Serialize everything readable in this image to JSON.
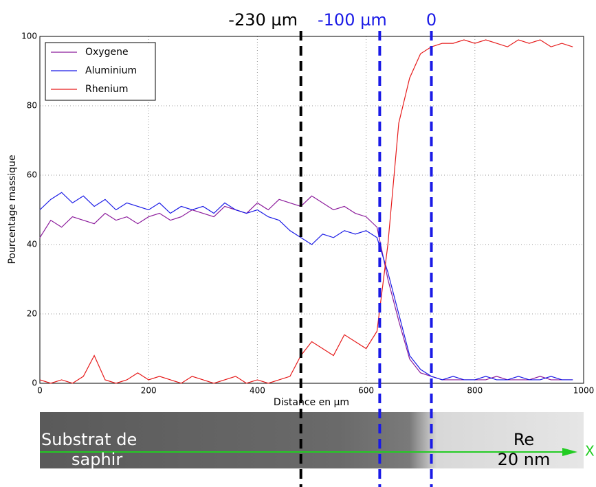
{
  "chart_data": {
    "type": "line",
    "x_label": "Distance en µm",
    "y_label": "Pourcentage massique",
    "x": [
      0,
      20,
      40,
      60,
      80,
      100,
      120,
      140,
      160,
      180,
      200,
      220,
      240,
      260,
      280,
      300,
      320,
      340,
      360,
      380,
      400,
      420,
      440,
      460,
      480,
      500,
      520,
      540,
      560,
      580,
      600,
      620,
      640,
      660,
      680,
      700,
      720,
      740,
      760,
      780,
      800,
      820,
      840,
      860,
      880,
      900,
      920,
      940,
      960,
      980
    ],
    "series": [
      {
        "name": "Oxygene",
        "color": "#8b1a9b",
        "values": [
          42,
          47,
          45,
          48,
          47,
          46,
          49,
          47,
          48,
          46,
          48,
          49,
          47,
          48,
          50,
          49,
          48,
          51,
          50,
          49,
          52,
          50,
          53,
          52,
          51,
          54,
          52,
          50,
          51,
          49,
          48,
          45,
          30,
          18,
          7,
          3,
          2,
          1,
          1,
          1,
          1,
          1,
          2,
          1,
          1,
          1,
          2,
          1,
          1,
          1
        ]
      },
      {
        "name": "Aluminium",
        "color": "#1a1ae6",
        "values": [
          50,
          53,
          55,
          52,
          54,
          51,
          53,
          50,
          52,
          51,
          50,
          52,
          49,
          51,
          50,
          51,
          49,
          52,
          50,
          49,
          50,
          48,
          47,
          44,
          42,
          40,
          43,
          42,
          44,
          43,
          44,
          42,
          32,
          20,
          8,
          4,
          2,
          1,
          2,
          1,
          1,
          2,
          1,
          1,
          2,
          1,
          1,
          2,
          1,
          1
        ]
      },
      {
        "name": "Rhenium",
        "color": "#e61a1a",
        "values": [
          1,
          0,
          1,
          0,
          2,
          8,
          1,
          0,
          1,
          3,
          1,
          2,
          1,
          0,
          2,
          1,
          0,
          1,
          2,
          0,
          1,
          0,
          1,
          2,
          8,
          12,
          10,
          8,
          14,
          12,
          10,
          15,
          40,
          75,
          88,
          95,
          97,
          98,
          98,
          99,
          98,
          99,
          98,
          97,
          99,
          98,
          99,
          97,
          98,
          97
        ]
      }
    ],
    "xlim": [
      0,
      1000
    ],
    "xticks": [
      0,
      200,
      400,
      600,
      800,
      1000
    ],
    "ylim": [
      0,
      100
    ],
    "yticks": [
      0,
      20,
      40,
      60,
      80,
      100
    ],
    "grid": true,
    "legend": "upper left",
    "markers": [
      {
        "x": 480,
        "label": "-230 µm",
        "color": "#000000"
      },
      {
        "x": 625,
        "label": "-100 µm",
        "color": "#1a1ae6"
      },
      {
        "x": 720,
        "label": "0",
        "color": "#1a1ae6"
      }
    ],
    "image_labels": {
      "substrate_1": "Substrat de",
      "substrate_2": "saphir",
      "film_1": "Re",
      "film_2": "20 nm",
      "axis": "X"
    }
  }
}
